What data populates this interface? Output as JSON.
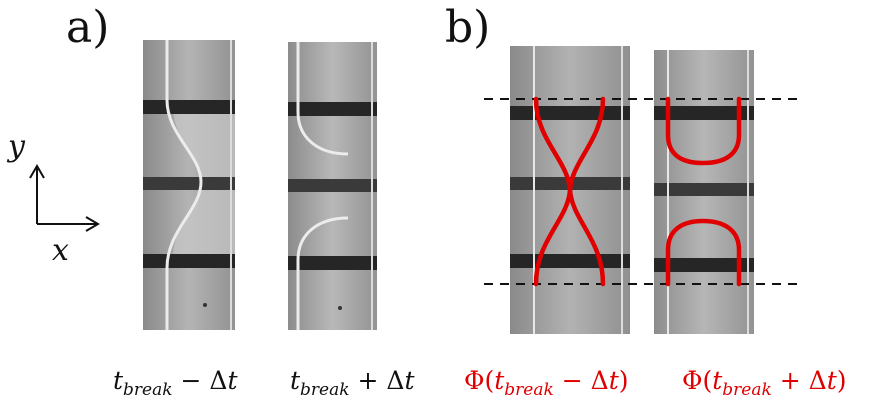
{
  "panels": {
    "a_label": "a)",
    "b_label": "b)"
  },
  "axes": {
    "x_label": "x",
    "y_label": "y"
  },
  "captions": {
    "frame1": {
      "var": "t",
      "sub": "break",
      "op": "−",
      "delta": "Δ",
      "dvar": "t"
    },
    "frame2": {
      "var": "t",
      "sub": "break",
      "op": "+",
      "delta": "Δ",
      "dvar": "t"
    },
    "frame3": {
      "phi": "Φ(",
      "var": "t",
      "sub": "break",
      "op": "−",
      "delta": "Δ",
      "dvar": "t",
      "close": ")"
    },
    "frame4": {
      "phi": "Φ(",
      "var": "t",
      "sub": "break",
      "op": "+",
      "delta": "Δ",
      "dvar": "t",
      "close": ")"
    }
  },
  "colors": {
    "contour": "#e00000",
    "band": "#222222",
    "background": "#9a9a9a"
  }
}
